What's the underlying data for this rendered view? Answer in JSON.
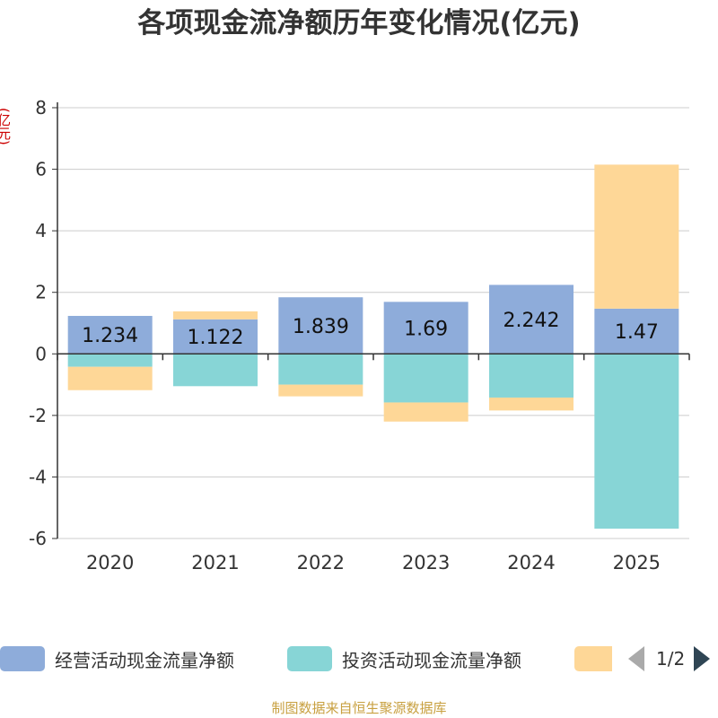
{
  "chart_data": {
    "type": "bar",
    "stacked": true,
    "title": "各项现金流净额历年变化情况(亿元)",
    "ylabel": "(亿元)",
    "xlabel": "",
    "ylim": [
      -6,
      8
    ],
    "yticks": [
      -6,
      -4,
      -2,
      0,
      2,
      4,
      6,
      8
    ],
    "grid": true,
    "categories": [
      "2020",
      "2021",
      "2022",
      "2023",
      "2024",
      "2025"
    ],
    "series": [
      {
        "name": "经营活动现金流量净额",
        "color": "#8eacda",
        "values": [
          1.234,
          1.122,
          1.839,
          1.69,
          2.242,
          1.47
        ],
        "labels_shown": true
      },
      {
        "name": "投资活动现金流量净额",
        "color": "#87d5d6",
        "values": [
          -0.42,
          -1.05,
          -1.0,
          -1.58,
          -1.42,
          -5.68
        ],
        "labels_shown": false
      },
      {
        "name": "",
        "color": "#fed797",
        "values": [
          -0.76,
          0.26,
          -0.38,
          -0.62,
          -0.42,
          4.68
        ],
        "labels_shown": false
      }
    ],
    "legend_position": "bottom",
    "legend_page": "1/2"
  },
  "footer": {
    "source": "制图数据来自恒生聚源数据库"
  },
  "colors": {
    "axis": "#333333",
    "grid": "#cccccc",
    "text": "#333333",
    "source": "#c8a040"
  }
}
